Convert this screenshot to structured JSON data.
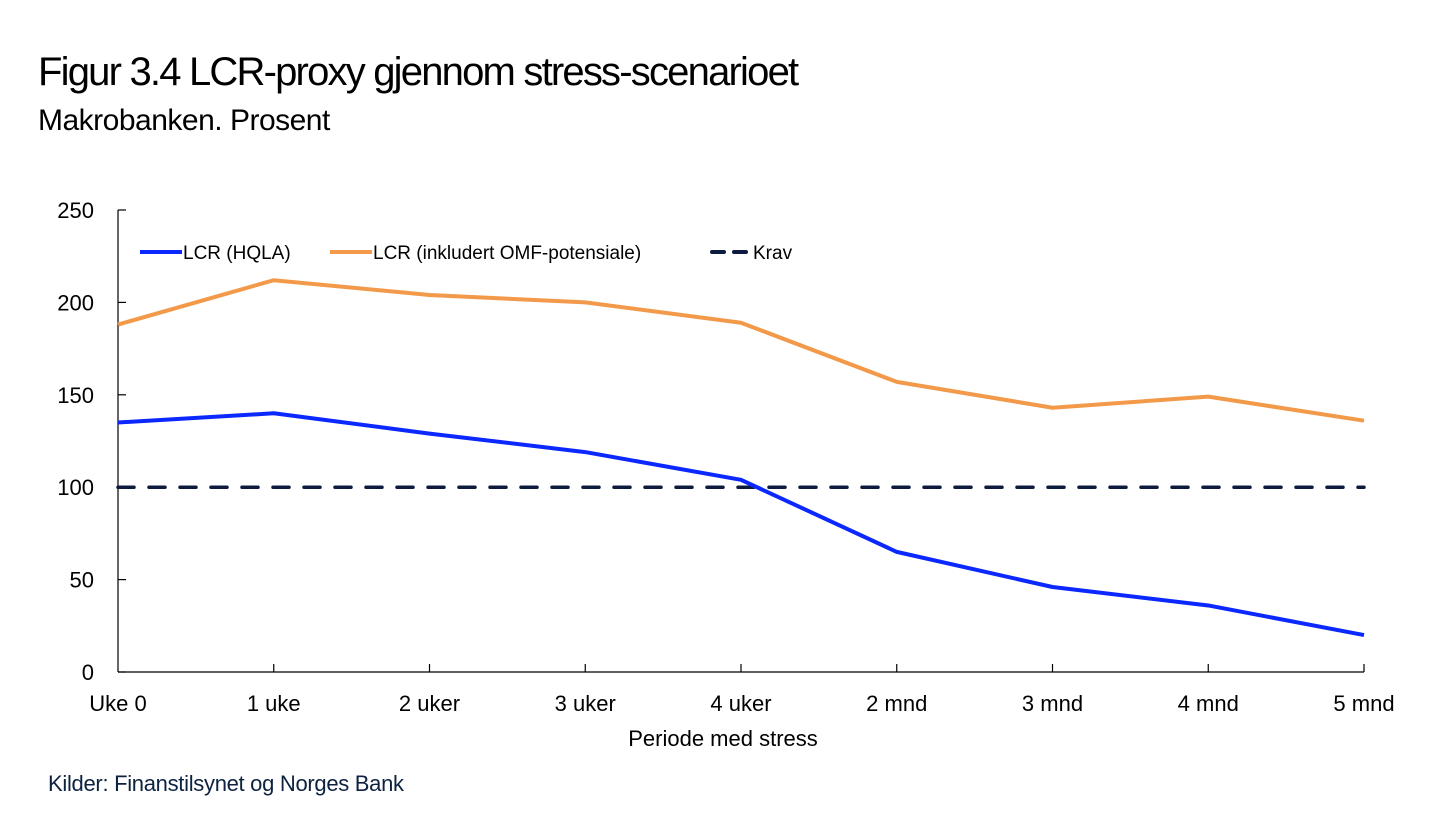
{
  "header": {
    "title": "Figur 3.4 LCR-proxy gjennom stress-scenarioet",
    "subtitle": "Makrobanken. Prosent"
  },
  "footer": {
    "source": "Kilder: Finanstilsynet og Norges Bank"
  },
  "colors": {
    "hqla": "#0a28ff",
    "omf": "#f2994a",
    "krav": "#0d1b3e",
    "axis": "#000000"
  },
  "chart_data": {
    "type": "line",
    "title": "Figur 3.4 LCR-proxy gjennom stress-scenarioet",
    "subtitle": "Makrobanken. Prosent",
    "xlabel": "Periode med stress",
    "ylabel": "",
    "categories": [
      "Uke 0",
      "1 uke",
      "2 uker",
      "3 uker",
      "4 uker",
      "2 mnd",
      "3 mnd",
      "4 mnd",
      "5 mnd"
    ],
    "ylim": [
      0,
      250
    ],
    "yticks": [
      0,
      50,
      100,
      150,
      200,
      250
    ],
    "grid": false,
    "legend_position": "top-left",
    "series": [
      {
        "name": "LCR (HQLA)",
        "style": "solid",
        "color": "#0a28ff",
        "values": [
          135,
          140,
          129,
          119,
          104,
          65,
          46,
          36,
          20
        ]
      },
      {
        "name": "LCR (inkludert OMF-potensiale)",
        "style": "solid",
        "color": "#f2994a",
        "values": [
          188,
          212,
          204,
          200,
          189,
          157,
          143,
          149,
          136
        ]
      },
      {
        "name": "Krav",
        "style": "dashed",
        "color": "#0d1b3e",
        "values": [
          100,
          100,
          100,
          100,
          100,
          100,
          100,
          100,
          100
        ]
      }
    ]
  }
}
